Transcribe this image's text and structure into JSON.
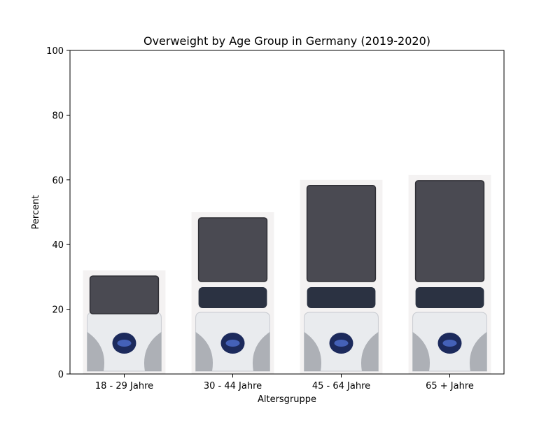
{
  "colors": {
    "frame": "#000000",
    "scale_body": "#e9ebee",
    "scale_pad": "#4a4a52",
    "scale_pad_edge": "#2f2f35",
    "scale_base": "#9da1a8",
    "scale_button": "#1c2a5c",
    "scale_button_glow": "#4f6fd0",
    "display_panel": "#2b3242"
  },
  "icons": {
    "bar_pictogram": "bathroom-scale-icon"
  },
  "chart_data": {
    "type": "bar",
    "title": "Overweight by Age Group in Germany (2019-2020)",
    "xlabel": "Altersgruppe",
    "ylabel": "Percent",
    "categories": [
      "18 - 29 Jahre",
      "30 - 44 Jahre",
      "45 - 64 Jahre",
      "65 + Jahre"
    ],
    "values": [
      32,
      50,
      60,
      61.5
    ],
    "ylim": [
      0,
      100
    ],
    "yticks": [
      0,
      20,
      40,
      60,
      80,
      100
    ],
    "grid": false,
    "legend": "none"
  }
}
